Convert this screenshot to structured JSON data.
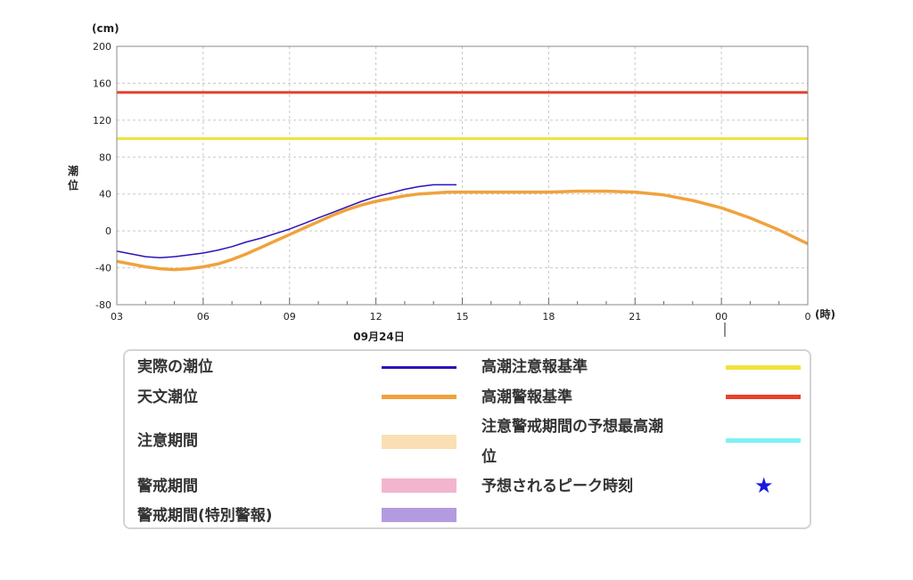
{
  "chart_data": {
    "type": "line",
    "y_unit": "(cm)",
    "x_unit": "(時)",
    "ylabel": "潮位",
    "ylim": [
      -80,
      200
    ],
    "yticks": [
      -80,
      -40,
      0,
      40,
      80,
      120,
      160,
      200
    ],
    "x_hours_range": [
      3,
      27
    ],
    "xticks": [
      {
        "h": 3,
        "label": "03"
      },
      {
        "h": 6,
        "label": "06"
      },
      {
        "h": 9,
        "label": "09"
      },
      {
        "h": 12,
        "label": "12"
      },
      {
        "h": 15,
        "label": "15"
      },
      {
        "h": 18,
        "label": "18"
      },
      {
        "h": 21,
        "label": "21"
      },
      {
        "h": 24,
        "label": "00"
      },
      {
        "h": 27,
        "label": "0"
      }
    ],
    "date_label": "09月24日",
    "grid": true,
    "thresholds": [
      {
        "name": "高潮警報基準",
        "value": 150,
        "color": "#e8412c"
      },
      {
        "name": "高潮注意報基準",
        "value": 100,
        "color": "#f0e23c"
      }
    ],
    "series": [
      {
        "name": "実際の潮位",
        "color": "#2a13b8",
        "x": [
          3,
          3.5,
          4,
          4.5,
          5,
          5.5,
          6,
          6.5,
          7,
          7.5,
          8,
          8.5,
          9,
          9.5,
          10,
          10.5,
          11,
          11.5,
          12,
          12.5,
          13,
          13.5,
          14,
          14.5,
          14.8
        ],
        "y": [
          -22,
          -25,
          -28,
          -29,
          -28,
          -26,
          -24,
          -21,
          -17,
          -12,
          -8,
          -3,
          2,
          8,
          14,
          20,
          26,
          32,
          37,
          41,
          45,
          48,
          50,
          50,
          50
        ]
      },
      {
        "name": "天文潮位",
        "color": "#f0a23c",
        "x": [
          3,
          3.5,
          4,
          4.5,
          5,
          5.5,
          6,
          6.5,
          7,
          7.5,
          8,
          8.5,
          9,
          9.5,
          10,
          10.5,
          11,
          11.5,
          12,
          12.5,
          13,
          13.5,
          14,
          14.5,
          15,
          16,
          17,
          18,
          19,
          20,
          21,
          22,
          23,
          24,
          25,
          26,
          27
        ],
        "y": [
          -33,
          -36,
          -39,
          -41,
          -42,
          -41,
          -39,
          -36,
          -31,
          -25,
          -18,
          -11,
          -4,
          3,
          10,
          17,
          23,
          28,
          32,
          35,
          38,
          40,
          41,
          42,
          42,
          42,
          42,
          42,
          43,
          43,
          42,
          39,
          33,
          25,
          14,
          1,
          -14
        ]
      }
    ]
  },
  "legend": {
    "actual": "実際の潮位",
    "astro": "天文潮位",
    "caution_period": "注意期間",
    "warning_period": "警戒期間",
    "warning_special": "警戒期間(特別警報)",
    "advisory_level": "高潮注意報基準",
    "warning_level": "高潮警報基準",
    "peak_line1": "注意警戒期間の予想最高潮",
    "peak_line2": "位",
    "peak_time": "予想されるピーク時刻",
    "star_glyph": "★",
    "colors": {
      "actual": "#2a13b8",
      "astro": "#f0a23c",
      "caution_period": "#f9dfb3",
      "warning_period": "#f3b5ce",
      "warning_special": "#b39be0",
      "advisory_level": "#f0e23c",
      "warning_level": "#e8412c",
      "peak_level": "#7ff0f5",
      "star": "#1a1ae0"
    }
  }
}
